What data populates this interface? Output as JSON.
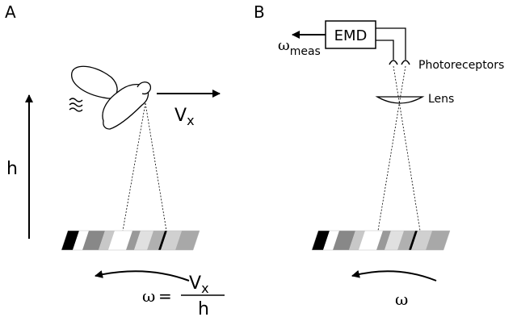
{
  "panel_a": {
    "label": "A",
    "height_symbol": "h",
    "velocity_symbol": "V",
    "velocity_subscript": "x",
    "omega_symbol": "ω",
    "equals": "=",
    "fraction_numerator": "V",
    "fraction_numerator_subscript": "x",
    "fraction_denominator": "h",
    "stripe_colors": [
      "#000000",
      "#ffffff",
      "#888888",
      "#c8c8c8",
      "#ffffff",
      "#999999",
      "#e0e0e0",
      "#b0b0b0",
      "#000000",
      "#d0d0d0",
      "#a8a8a8"
    ]
  },
  "panel_b": {
    "label": "B",
    "emd_label": "EMD",
    "omega_meas_symbol": "ω",
    "omega_meas_subscript": "meas",
    "photoreceptors_label": "Photoreceptors",
    "lens_label": "Lens",
    "omega_symbol": "ω"
  }
}
